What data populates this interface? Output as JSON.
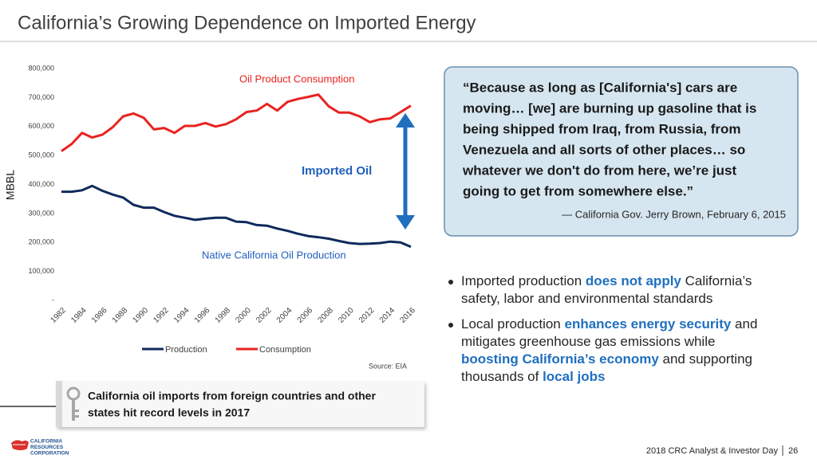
{
  "header": {
    "title": "California’s Growing Dependence on Imported Energy"
  },
  "chart_data": {
    "type": "line",
    "y_label": "MBBL",
    "x": [
      1982,
      1983,
      1984,
      1985,
      1986,
      1987,
      1988,
      1989,
      1990,
      1991,
      1992,
      1993,
      1994,
      1995,
      1996,
      1997,
      1998,
      1999,
      2000,
      2001,
      2002,
      2003,
      2004,
      2005,
      2006,
      2007,
      2008,
      2009,
      2010,
      2011,
      2012,
      2013,
      2014,
      2015,
      2016
    ],
    "xlim": [
      1982,
      2016
    ],
    "xticks": [
      1982,
      1984,
      1986,
      1988,
      1990,
      1992,
      1994,
      1996,
      1998,
      2000,
      2002,
      2004,
      2006,
      2008,
      2010,
      2012,
      2014,
      2016
    ],
    "ylim": [
      0,
      800000
    ],
    "yticks": [
      {
        "value": 0,
        "label": "-"
      },
      {
        "value": 100000,
        "label": "100,000"
      },
      {
        "value": 200000,
        "label": "200,000"
      },
      {
        "value": 300000,
        "label": "300,000"
      },
      {
        "value": 400000,
        "label": "400,000"
      },
      {
        "value": 500000,
        "label": "500,000"
      },
      {
        "value": 600000,
        "label": "600,000"
      },
      {
        "value": 700000,
        "label": "700,000"
      },
      {
        "value": 800000,
        "label": "800,000"
      }
    ],
    "grid": false,
    "series": [
      {
        "name": "Production",
        "color": "#0f2a5c",
        "values": [
          375000,
          375000,
          380000,
          395000,
          378000,
          365000,
          355000,
          330000,
          320000,
          320000,
          305000,
          292000,
          285000,
          278000,
          282000,
          285000,
          285000,
          272000,
          270000,
          260000,
          258000,
          248000,
          240000,
          230000,
          222000,
          218000,
          213000,
          205000,
          198000,
          195000,
          196000,
          198000,
          203000,
          200000,
          185000
        ]
      },
      {
        "name": "Consumption",
        "color": "#e8231f",
        "values": [
          515000,
          540000,
          578000,
          562000,
          572000,
          598000,
          635000,
          645000,
          630000,
          590000,
          595000,
          578000,
          602000,
          602000,
          612000,
          600000,
          608000,
          625000,
          650000,
          655000,
          678000,
          655000,
          685000,
          695000,
          702000,
          710000,
          670000,
          648000,
          648000,
          635000,
          615000,
          625000,
          628000,
          650000,
          672000
        ]
      }
    ],
    "annotations": {
      "consumption": "Oil Product Consumption",
      "imported": "Imported Oil",
      "production": "Native California Oil Production",
      "source": "Source: EIA"
    }
  },
  "quote": {
    "lines": [
      "“Because as long as [California's] cars are",
      "moving… [we] are burning up gasoline that is",
      "being shipped from Iraq, from Russia, from",
      "Venezuela and all sorts of other places… so",
      "whatever we don't do from here, we’re just",
      "going to get from somewhere else.”"
    ],
    "attribution": "— California Gov. Jerry Brown, February 6, 2015"
  },
  "bullets": [
    [
      [
        {
          "text": "Imported production ",
          "highlight": false
        },
        {
          "text": "does not apply",
          "highlight": true
        },
        {
          "text": " California’s",
          "highlight": false
        }
      ],
      [
        {
          "text": "safety, labor and environmental standards",
          "highlight": false
        }
      ]
    ],
    [
      [
        {
          "text": "Local production ",
          "highlight": false
        },
        {
          "text": "enhances energy security",
          "highlight": true
        },
        {
          "text": " and",
          "highlight": false
        }
      ],
      [
        {
          "text": "mitigates greenhouse gas emissions while",
          "highlight": false
        }
      ],
      [
        {
          "text": "boosting California’s economy",
          "highlight": true
        },
        {
          "text": " and supporting",
          "highlight": false
        }
      ],
      [
        {
          "text": "thousands of ",
          "highlight": false
        },
        {
          "text": "local jobs",
          "highlight": true
        }
      ]
    ]
  ],
  "callout": {
    "lines": [
      "California oil imports from foreign countries and other",
      "states hit record levels in 2017"
    ]
  },
  "logo": {
    "lines": [
      "CALIFORNIA",
      "RESOURCES",
      "CORPORATION"
    ]
  },
  "footer": {
    "text": "2018 CRC Analyst & Investor Day",
    "page": "26"
  }
}
